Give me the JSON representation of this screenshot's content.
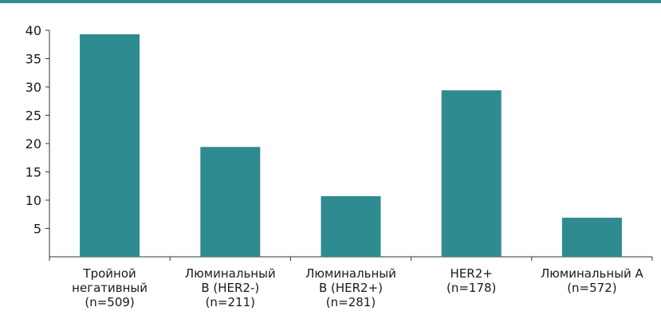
{
  "chart_data": {
    "type": "bar",
    "categories": [
      [
        "Тройной",
        "негативный",
        "(n=509)"
      ],
      [
        "Люминальный",
        "B (HER2-)",
        "(n=211)"
      ],
      [
        "Люминальный",
        "B (HER2+)",
        "(n=281)"
      ],
      [
        "HER2+",
        "(n=178)"
      ],
      [
        "Люминальный А",
        "(n=572)"
      ]
    ],
    "values": [
      39.3,
      19.4,
      10.7,
      29.4,
      6.9
    ],
    "ylim": [
      0,
      40
    ],
    "yticks": [
      5,
      10,
      15,
      20,
      25,
      30,
      35,
      40
    ],
    "bar_color": "#2e8b8f",
    "grid": false
  },
  "colors": {
    "top_border": "#2e8b8f"
  }
}
